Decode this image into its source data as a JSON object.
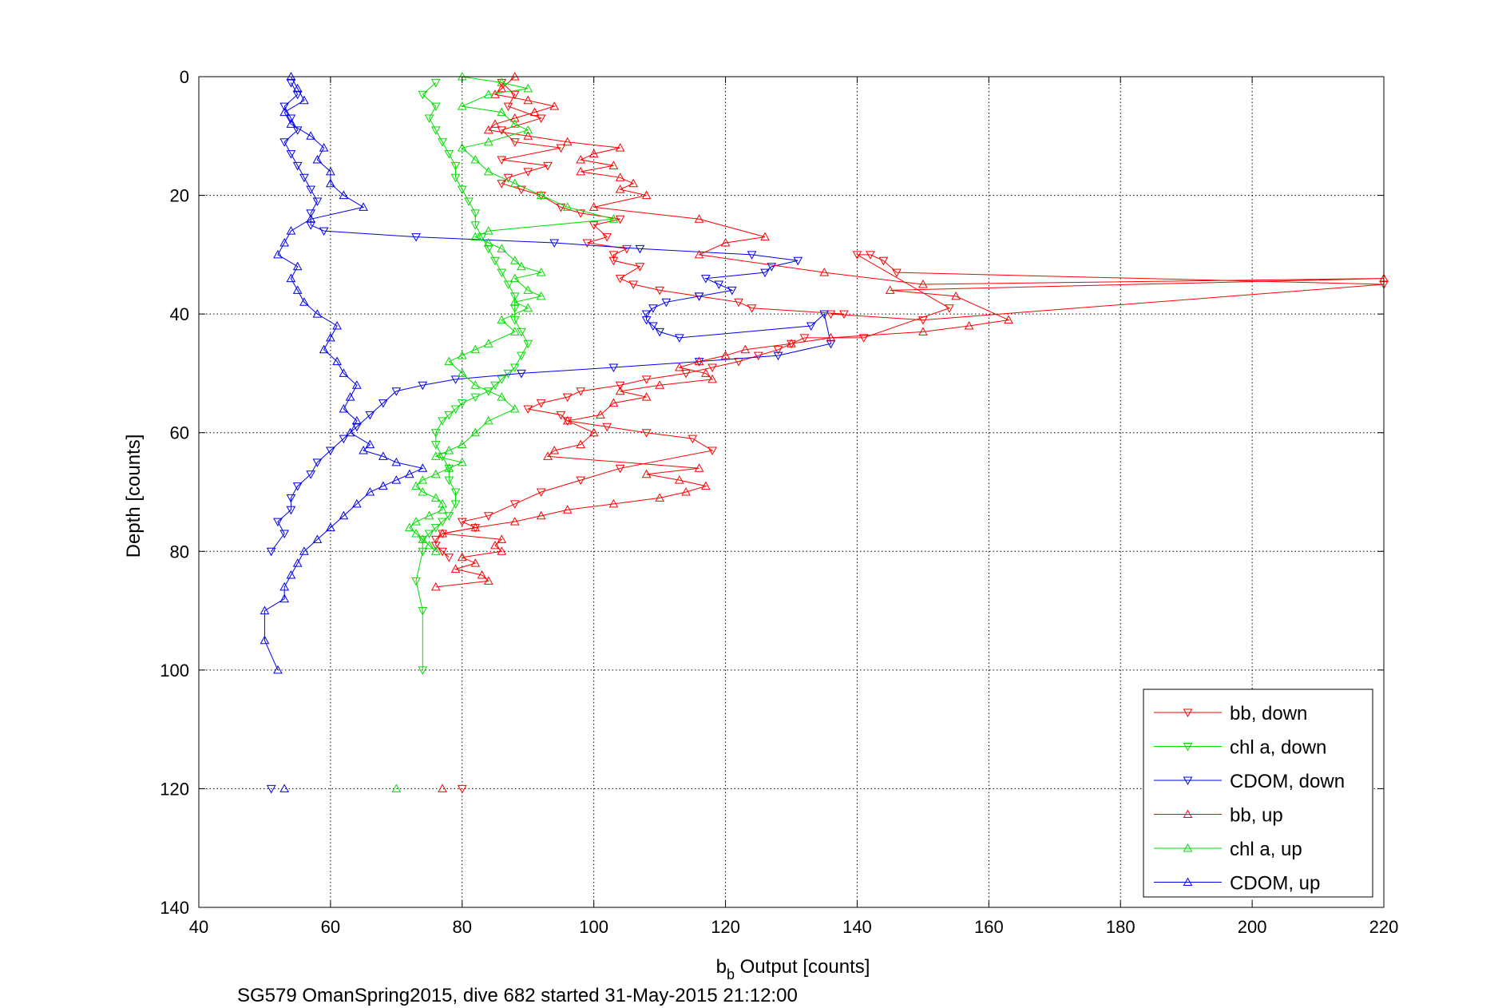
{
  "chart_data": {
    "type": "line",
    "xlabel_main": "b",
    "xlabel_sub": "b",
    "xlabel_rest": " Output [counts]",
    "ylabel": "Depth [counts]",
    "caption": "SG579 OmanSpring2015, dive 682 started 31-May-2015 21:12:00",
    "xlim": [
      40,
      220
    ],
    "ylim": [
      0,
      140
    ],
    "y_reversed": true,
    "grid": true,
    "legend_position": "bottom-right",
    "x_ticks": [
      "40",
      "60",
      "80",
      "100",
      "120",
      "140",
      "160",
      "180",
      "200",
      "220"
    ],
    "y_ticks": [
      "0",
      "20",
      "40",
      "60",
      "80",
      "100",
      "120",
      "140"
    ],
    "series": [
      {
        "name": "bb, down",
        "color": "#ff0000",
        "marker": "down",
        "x": [
          86,
          88,
          87,
          92,
          86,
          88,
          95,
          86,
          93,
          90,
          87,
          86,
          89,
          92,
          95,
          98,
          104,
          100,
          102,
          99,
          105,
          103,
          103,
          107,
          104,
          106,
          110,
          116,
          122,
          124,
          138,
          136,
          150,
          220,
          146,
          144,
          142,
          140,
          154,
          141,
          132,
          130,
          128,
          125,
          122,
          118,
          114,
          108,
          104,
          98,
          96,
          92,
          90,
          95,
          96,
          102,
          108,
          115,
          118,
          104,
          98,
          92,
          88,
          84,
          80,
          82,
          77,
          76,
          76,
          77,
          78,
          80
        ],
        "y": [
          1,
          3,
          5,
          7,
          9,
          11,
          12,
          14,
          15,
          16,
          17,
          18,
          19,
          20,
          22,
          23,
          24,
          25,
          27,
          28,
          29,
          30,
          31,
          32,
          34,
          35,
          36,
          37,
          38,
          39,
          40,
          40,
          41,
          35,
          33,
          31,
          30,
          30,
          39,
          44,
          44,
          45,
          46,
          47,
          48,
          49,
          50,
          51,
          52,
          53,
          54,
          55,
          56,
          57,
          58,
          59,
          60,
          61,
          63,
          66,
          68,
          70,
          72,
          74,
          75,
          76,
          77,
          78,
          79,
          80,
          81,
          120
        ]
      },
      {
        "name": "chl a, down",
        "color": "#00dd00",
        "marker": "down",
        "x": [
          76,
          74,
          76,
          75,
          76,
          77,
          78,
          79,
          79,
          80,
          81,
          82,
          82,
          83,
          84,
          85,
          86,
          87,
          88,
          88,
          88,
          89,
          90,
          89,
          88,
          87,
          86,
          85,
          84,
          82,
          80,
          79,
          78,
          77,
          76,
          76,
          77,
          78,
          78,
          79,
          79,
          78,
          77,
          76,
          75,
          74,
          74,
          73,
          74,
          74
        ],
        "y": [
          1,
          3,
          5,
          7,
          9,
          11,
          13,
          15,
          17,
          19,
          21,
          23,
          25,
          27,
          29,
          31,
          33,
          35,
          37,
          39,
          41,
          43,
          45,
          47,
          49,
          50,
          51,
          52,
          53,
          54,
          55,
          56,
          57,
          58,
          60,
          62,
          64,
          66,
          68,
          70,
          72,
          74,
          75,
          76,
          77,
          78,
          80,
          85,
          90,
          100
        ]
      },
      {
        "name": "CDOM, down",
        "color": "#0000ee",
        "marker": "down",
        "x": [
          54,
          55,
          53,
          54,
          55,
          53,
          54,
          55,
          56,
          57,
          58,
          57,
          57,
          59,
          73,
          94,
          107,
          124,
          131,
          127,
          126,
          117,
          119,
          121,
          116,
          111,
          109,
          108,
          108,
          109,
          110,
          113,
          133,
          135,
          136,
          128,
          116,
          103,
          89,
          79,
          74,
          70,
          68,
          66,
          64,
          62,
          60,
          58,
          57,
          55,
          54,
          54,
          52,
          53,
          51,
          51
        ],
        "y": [
          1,
          3,
          5,
          7,
          9,
          11,
          13,
          15,
          17,
          19,
          21,
          23,
          25,
          26,
          27,
          28,
          29,
          30,
          31,
          32,
          33,
          34,
          35,
          36,
          37,
          38,
          39,
          40,
          41,
          42,
          43,
          44,
          42,
          40,
          45,
          47,
          48,
          49,
          50,
          51,
          52,
          53,
          55,
          57,
          59,
          61,
          63,
          65,
          67,
          69,
          71,
          73,
          75,
          77,
          80,
          120
        ]
      },
      {
        "name": "bb, up",
        "color": "#ff0000",
        "marker": "up",
        "x": [
          88,
          86,
          85,
          90,
          94,
          91,
          88,
          85,
          84,
          90,
          96,
          104,
          100,
          98,
          103,
          98,
          104,
          106,
          104,
          108,
          100,
          116,
          126,
          120,
          116,
          135,
          150,
          220,
          145,
          155,
          163,
          157,
          150,
          136,
          130,
          123,
          120,
          116,
          113,
          117,
          118,
          110,
          104,
          108,
          103,
          101,
          96,
          100,
          98,
          94,
          93,
          116,
          108,
          113,
          117,
          114,
          110,
          103,
          96,
          92,
          88,
          82,
          77,
          86,
          85,
          86,
          80,
          82,
          79,
          83,
          84,
          76,
          77
        ],
        "y": [
          0,
          2,
          3,
          4,
          5,
          6,
          7,
          8,
          9,
          10,
          11,
          12,
          13,
          14,
          15,
          16,
          17,
          18,
          19,
          20,
          22,
          24,
          27,
          28,
          30,
          33,
          35,
          34,
          36,
          37,
          41,
          42,
          43,
          44,
          45,
          46,
          47,
          48,
          49,
          50,
          51,
          52,
          53,
          54,
          55,
          57,
          58,
          60,
          62,
          63,
          64,
          66,
          67,
          68,
          69,
          70,
          71,
          72,
          73,
          74,
          75,
          76,
          77,
          78,
          79,
          80,
          81,
          82,
          83,
          84,
          85,
          86,
          120
        ]
      },
      {
        "name": "chl a, up",
        "color": "#00dd00",
        "marker": "up",
        "x": [
          80,
          86,
          90,
          84,
          80,
          86,
          88,
          90,
          84,
          80,
          82,
          84,
          88,
          92,
          96,
          103,
          84,
          82,
          84,
          86,
          88,
          89,
          92,
          88,
          90,
          92,
          88,
          90,
          86,
          88,
          84,
          82,
          80,
          78,
          80,
          82,
          86,
          88,
          84,
          82,
          80,
          78,
          76,
          80,
          78,
          76,
          74,
          73,
          74,
          76,
          77,
          77,
          75,
          73,
          72,
          73,
          74,
          75,
          76,
          70
        ],
        "y": [
          0,
          1,
          2,
          3,
          5,
          6,
          8,
          9,
          11,
          12,
          14,
          16,
          18,
          20,
          22,
          24,
          26,
          27,
          28,
          29,
          31,
          32,
          33,
          34,
          36,
          37,
          38,
          39,
          41,
          43,
          45,
          46,
          47,
          48,
          50,
          52,
          54,
          56,
          58,
          60,
          62,
          63,
          64,
          65,
          66,
          67,
          68,
          69,
          70,
          71,
          72,
          73,
          74,
          75,
          76,
          77,
          78,
          79,
          80,
          120
        ]
      },
      {
        "name": "CDOM, up",
        "color": "#0000ee",
        "marker": "up",
        "x": [
          54,
          55,
          56,
          53,
          54,
          57,
          59,
          58,
          60,
          60,
          62,
          65,
          57,
          54,
          53,
          52,
          55,
          54,
          55,
          56,
          58,
          61,
          60,
          59,
          61,
          62,
          64,
          63,
          62,
          64,
          63,
          66,
          65,
          68,
          70,
          74,
          72,
          70,
          68,
          66,
          64,
          62,
          60,
          58,
          56,
          55,
          54,
          53,
          53,
          50,
          50,
          52,
          53
        ],
        "y": [
          0,
          2,
          4,
          6,
          8,
          10,
          12,
          14,
          16,
          18,
          20,
          22,
          24,
          26,
          28,
          30,
          32,
          34,
          36,
          38,
          40,
          42,
          44,
          46,
          48,
          50,
          52,
          54,
          56,
          58,
          60,
          62,
          63,
          64,
          65,
          66,
          67,
          68,
          69,
          70,
          72,
          74,
          76,
          78,
          80,
          82,
          84,
          86,
          88,
          90,
          95,
          100,
          120
        ]
      }
    ]
  }
}
